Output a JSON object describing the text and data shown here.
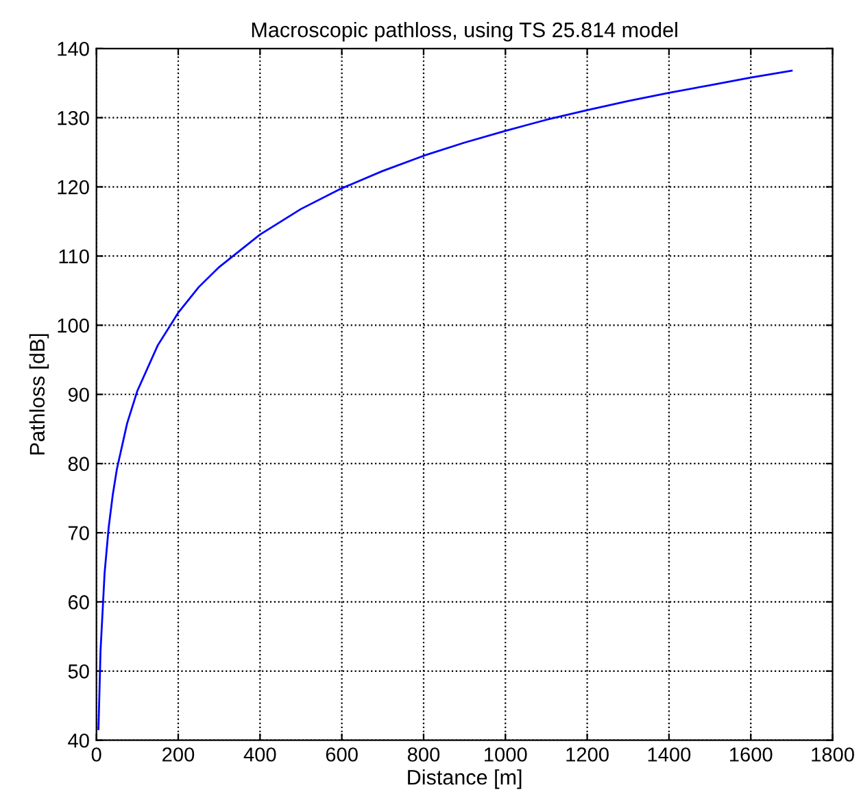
{
  "chart_data": {
    "type": "line",
    "title": "Macroscopic pathloss, using TS 25.814 model",
    "xlabel": "Distance [m]",
    "ylabel": "Pathloss [dB]",
    "x": [
      5,
      10,
      20,
      30,
      40,
      50,
      75,
      100,
      150,
      200,
      250,
      300,
      400,
      500,
      600,
      700,
      800,
      900,
      1000,
      1100,
      1200,
      1300,
      1400,
      1500,
      1600,
      1700
    ],
    "series": [
      {
        "color": "#0000ff",
        "values": [
          41.6,
          52.9,
          64.2,
          70.8,
          75.5,
          79.2,
          85.8,
          90.5,
          97.1,
          101.8,
          105.5,
          108.4,
          113.1,
          116.8,
          119.8,
          122.3,
          124.5,
          126.4,
          128.1,
          129.7,
          131.1,
          132.4,
          133.6,
          134.7,
          135.8,
          136.8
        ]
      }
    ],
    "xlim": [
      0,
      1800
    ],
    "ylim": [
      40,
      140
    ],
    "xticks": [
      0,
      200,
      400,
      600,
      800,
      1000,
      1200,
      1400,
      1600,
      1800
    ],
    "yticks": [
      40,
      50,
      60,
      70,
      80,
      90,
      100,
      110,
      120,
      130,
      140
    ],
    "grid": true,
    "line_style": "solid",
    "marker": "none"
  }
}
